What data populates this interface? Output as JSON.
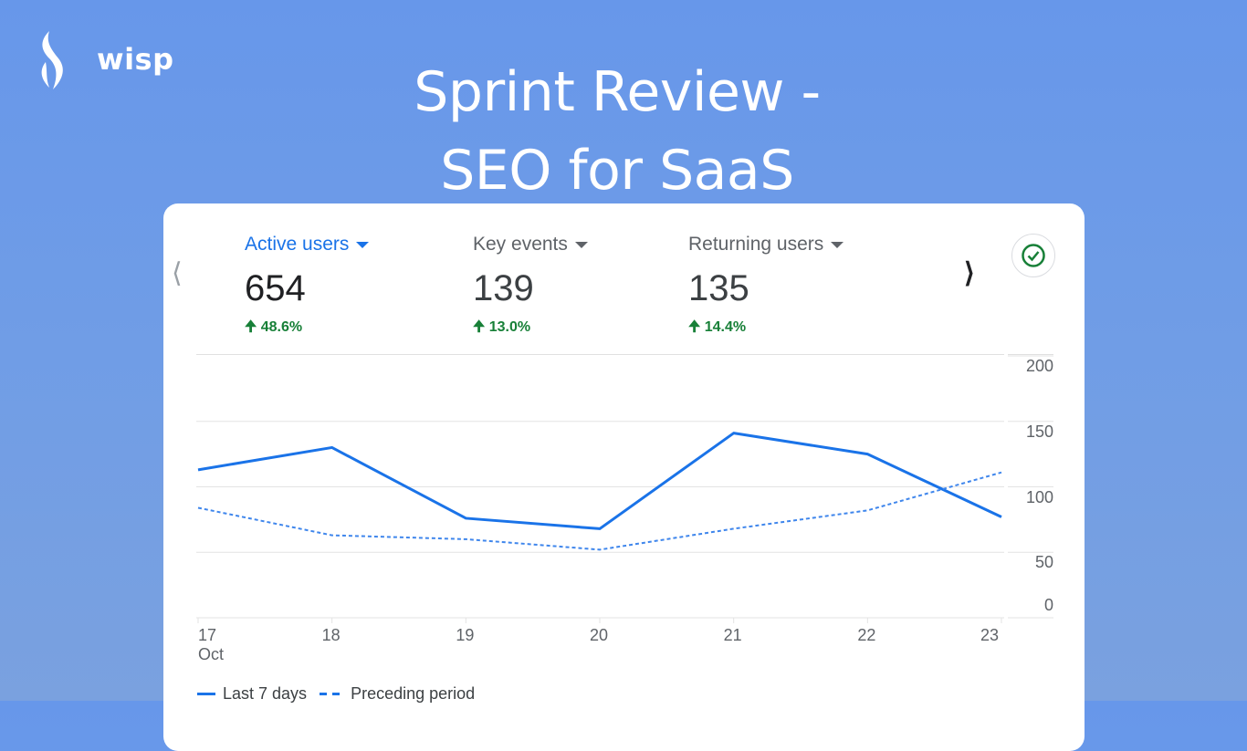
{
  "brand": {
    "name": "wisp"
  },
  "title": {
    "line1": "Sprint Review -",
    "line2": "SEO for SaaS"
  },
  "metrics": [
    {
      "label": "Active users",
      "value": "654",
      "change": "48.6%",
      "active": true
    },
    {
      "label": "Key events",
      "value": "139",
      "change": "13.0%",
      "active": false
    },
    {
      "label": "Returning users",
      "value": "135",
      "change": "14.4%",
      "active": false
    }
  ],
  "colors": {
    "accent": "#1a73e8",
    "positive": "#188038"
  },
  "chart_data": {
    "type": "line",
    "x": [
      "17",
      "18",
      "19",
      "20",
      "21",
      "22",
      "23"
    ],
    "x_sublabel": "Oct",
    "yticks": [
      "200",
      "150",
      "100",
      "50",
      "0"
    ],
    "ylim": [
      0,
      200
    ],
    "grid": true,
    "legend_position": "bottom-left",
    "series": [
      {
        "name": "Last 7 days",
        "style": "solid",
        "values": [
          113,
          130,
          76,
          68,
          141,
          125,
          77
        ]
      },
      {
        "name": "Preceding period",
        "style": "dashed",
        "values": [
          84,
          63,
          60,
          52,
          68,
          82,
          111
        ]
      }
    ]
  }
}
